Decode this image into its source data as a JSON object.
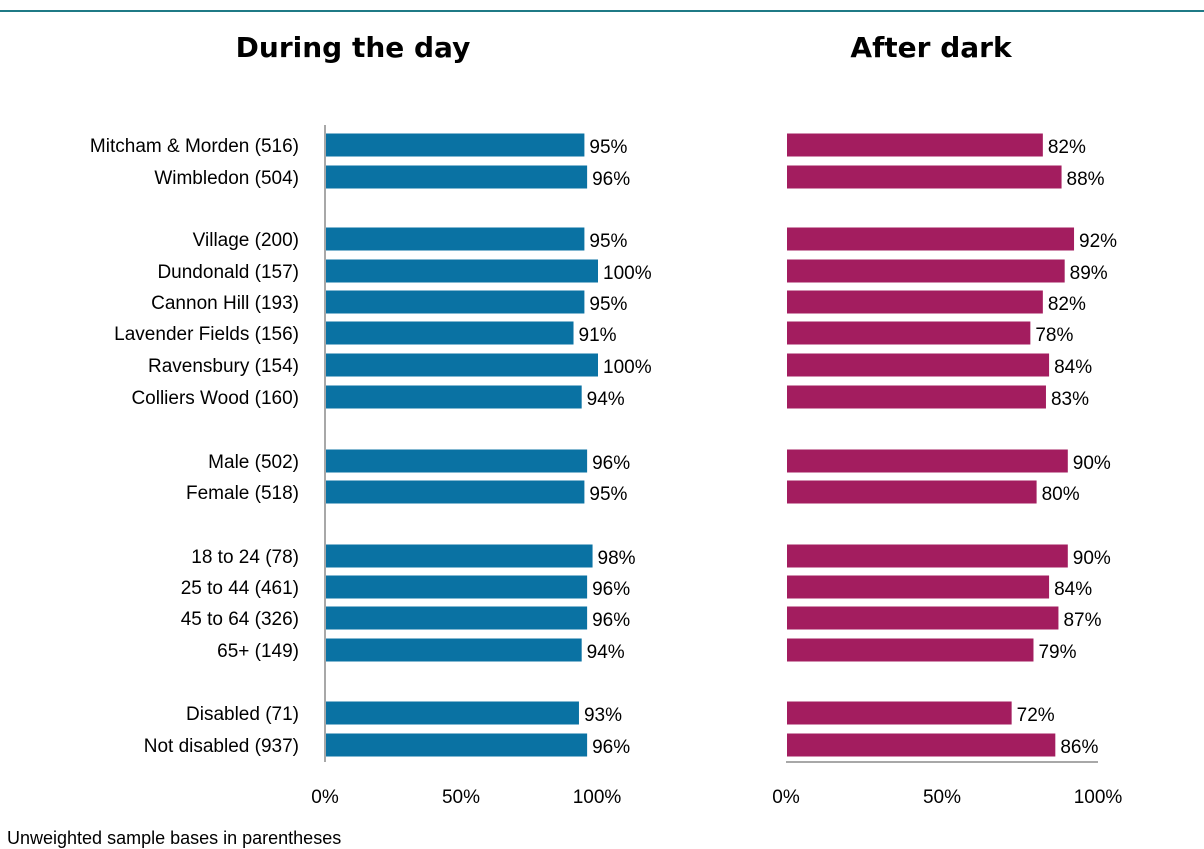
{
  "chart_data": {
    "type": "bar",
    "orientation": "horizontal",
    "categories": [
      "Mitcham & Morden (516)",
      "Wimbledon (504)",
      "Village (200)",
      "Dundonald (157)",
      "Cannon Hill (193)",
      "Lavender Fields (156)",
      "Ravensbury (154)",
      "Colliers Wood (160)",
      "Male (502)",
      "Female (518)",
      "18 to 24 (78)",
      "25 to 44 (461)",
      "45 to 64 (326)",
      "65+ (149)",
      "Disabled (71)",
      "Not disabled (937)"
    ],
    "groups": [
      [
        0,
        1
      ],
      [
        2,
        3,
        4,
        5,
        6,
        7
      ],
      [
        8,
        9
      ],
      [
        10,
        11,
        12,
        13
      ],
      [
        14,
        15
      ]
    ],
    "panels": [
      {
        "title": "During the day",
        "color": "#0a72a3",
        "values": [
          95,
          96,
          95,
          100,
          95,
          91,
          100,
          94,
          96,
          95,
          98,
          96,
          96,
          94,
          93,
          96
        ],
        "labels": [
          "95%",
          "96%",
          "95%",
          "100%",
          "95%",
          "91%",
          "100%",
          "94%",
          "96%",
          "95%",
          "98%",
          "96%",
          "96%",
          "94%",
          "93%",
          "96%"
        ],
        "xlim": [
          0,
          100
        ],
        "xticks": [
          "0%",
          "50%",
          "100%"
        ]
      },
      {
        "title": "After dark",
        "color": "#a31d5f",
        "values": [
          82,
          88,
          92,
          89,
          82,
          78,
          84,
          83,
          90,
          80,
          90,
          84,
          87,
          79,
          72,
          86
        ],
        "labels": [
          "82%",
          "88%",
          "92%",
          "89%",
          "82%",
          "78%",
          "84%",
          "83%",
          "90%",
          "80%",
          "90%",
          "84%",
          "87%",
          "79%",
          "72%",
          "86%"
        ],
        "xlim": [
          0,
          100
        ],
        "xticks": [
          "0%",
          "50%",
          "100%"
        ]
      }
    ]
  },
  "footnote": "Unweighted sample bases in parentheses"
}
